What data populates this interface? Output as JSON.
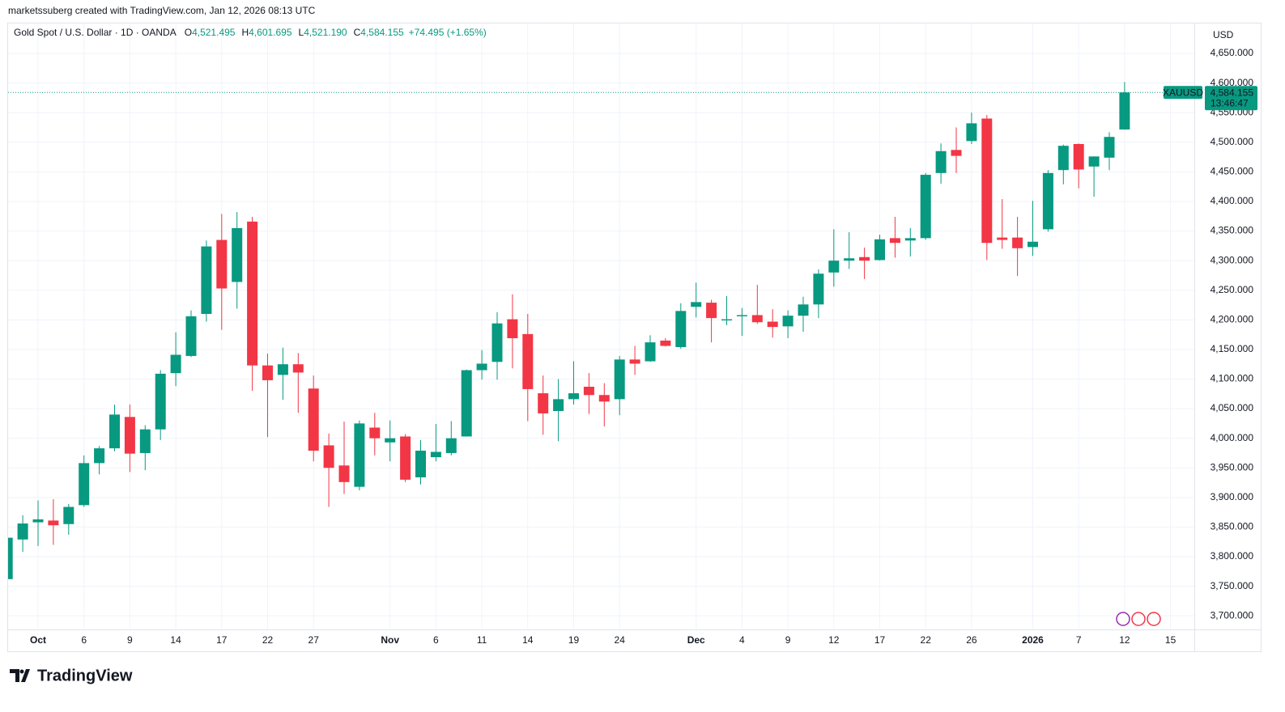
{
  "attribution": "marketssuberg created with TradingView.com, Jan 12, 2026 08:13 UTC",
  "brand": "TradingView",
  "chart_data": {
    "type": "candlestick",
    "title": "Gold Spot / U.S. Dollar · 1D · OANDA",
    "legend": [
      {
        "label": "O",
        "value": "4,521.495"
      },
      {
        "label": "H",
        "value": "4,601.695"
      },
      {
        "label": "L",
        "value": "4,521.190"
      },
      {
        "label": "C",
        "value": "4,584.155"
      }
    ],
    "change": "+74.495 (+1.65%)",
    "currency": "USD",
    "symbol": "XAUUSD",
    "last_price_label": "4,584.155",
    "countdown": "13:46:47",
    "up_color": "#089981",
    "down_color": "#f23645",
    "grid": true,
    "categories": [
      null,
      null,
      "Oct",
      null,
      null,
      "6",
      null,
      null,
      "9",
      null,
      null,
      "14",
      null,
      null,
      "17",
      null,
      null,
      "22",
      null,
      null,
      "27",
      null,
      null,
      null,
      null,
      "Nov",
      null,
      null,
      "6",
      null,
      null,
      "11",
      null,
      null,
      "14",
      null,
      null,
      "19",
      null,
      null,
      "24",
      null,
      null,
      null,
      null,
      "Dec",
      null,
      null,
      "4",
      null,
      null,
      "9",
      null,
      null,
      "12",
      null,
      null,
      "17",
      null,
      null,
      "22",
      null,
      null,
      "26",
      null,
      null,
      null,
      "2026",
      null,
      null,
      "7",
      null,
      null,
      "12",
      null,
      null,
      "15"
    ],
    "open": [
      3762,
      3829,
      3858,
      3861,
      3855,
      3887,
      3958,
      3983,
      4036,
      3975,
      4015,
      4110,
      4139,
      4210,
      4335,
      4264,
      4366,
      4123,
      4107,
      4125,
      4084,
      3988,
      3954,
      3918,
      4018,
      3993,
      4003,
      3934,
      3968,
      3975,
      4003,
      4115,
      4129,
      4201,
      4176,
      4076,
      4046,
      4066,
      4087,
      4073,
      4066,
      4133,
      4130,
      4165,
      4154,
      4222,
      4229,
      4199,
      4206,
      4208,
      4197,
      4189,
      4207,
      4226,
      4280,
      4300,
      4306,
      4301,
      4338,
      4334,
      4338,
      4448,
      4487,
      4502,
      4540,
      4339,
      4339,
      4323,
      4353,
      4453,
      4497,
      4459,
      4474,
      4521.495,
      null,
      null,
      null
    ],
    "high": [
      3833,
      3870,
      3895,
      3897,
      3889,
      3971,
      3987,
      4057,
      4057,
      4022,
      4115,
      4179,
      4216,
      4334,
      4379,
      4382,
      4374,
      4143,
      4153,
      4144,
      4106,
      4008,
      4028,
      4030,
      4043,
      4030,
      4007,
      3997,
      4024,
      4029,
      4116,
      4149,
      4213,
      4243,
      4210,
      4106,
      4100,
      4130,
      4110,
      4093,
      4139,
      4156,
      4174,
      4169,
      4228,
      4263,
      4234,
      4240,
      4220,
      4259,
      4218,
      4216,
      4239,
      4285,
      4353,
      4348,
      4322,
      4344,
      4374,
      4355,
      4448,
      4498,
      4525,
      4550,
      4546,
      4404,
      4374,
      4401,
      4453,
      4496,
      4498,
      4476,
      4517,
      4601.695,
      null,
      null,
      null
    ],
    "low": [
      3758,
      3808,
      3818,
      3820,
      3837,
      3884,
      3939,
      3978,
      3943,
      3946,
      3997,
      4088,
      4137,
      4197,
      4183,
      4219,
      4080,
      4002,
      4065,
      4043,
      3961,
      3884,
      3906,
      3912,
      3971,
      3961,
      3926,
      3922,
      3961,
      3971,
      4003,
      4099,
      4099,
      4118,
      4029,
      4006,
      3995,
      4057,
      4041,
      4020,
      4039,
      4107,
      4129,
      4155,
      4151,
      4204,
      4162,
      4191,
      4173,
      4193,
      4170,
      4169,
      4180,
      4203,
      4256,
      4286,
      4269,
      4300,
      4305,
      4307,
      4335,
      4430,
      4448,
      4497,
      4301,
      4320,
      4274,
      4308,
      4349,
      4429,
      4422,
      4408,
      4453,
      4521.19,
      null,
      null,
      null
    ],
    "close": [
      3832,
      3856,
      3863,
      3853,
      3884,
      3958,
      3983,
      4040,
      3974,
      4015,
      4109,
      4141,
      4206,
      4324,
      4253,
      4355,
      4123,
      4098,
      4125,
      4111,
      3979,
      3950,
      3926,
      4025,
      4000,
      4000,
      3930,
      3979,
      3977,
      4000,
      4115,
      4126,
      4194,
      4169,
      4083,
      4042,
      4066,
      4076,
      4073,
      4062,
      4133,
      4126,
      4162,
      4156,
      4215,
      4230,
      4203,
      4201,
      4208,
      4196,
      4188,
      4207,
      4226,
      4278,
      4300,
      4304,
      4300,
      4336,
      4330,
      4338,
      4445,
      4485,
      4477,
      4532,
      4330,
      4335,
      4321,
      4332,
      4448,
      4494,
      4454,
      4476,
      4509,
      4584.155,
      null,
      null,
      null
    ],
    "ylim": [
      3677,
      4702
    ],
    "yticks": [
      {
        "value": 3700,
        "label": "3,700.000"
      },
      {
        "value": 3750,
        "label": "3,750.000"
      },
      {
        "value": 3800,
        "label": "3,800.000"
      },
      {
        "value": 3850,
        "label": "3,850.000"
      },
      {
        "value": 3900,
        "label": "3,900.000"
      },
      {
        "value": 3950,
        "label": "3,950.000"
      },
      {
        "value": 4000,
        "label": "4,000.000"
      },
      {
        "value": 4050,
        "label": "4,050.000"
      },
      {
        "value": 4100,
        "label": "4,100.000"
      },
      {
        "value": 4150,
        "label": "4,150.000"
      },
      {
        "value": 4200,
        "label": "4,200.000"
      },
      {
        "value": 4250,
        "label": "4,250.000"
      },
      {
        "value": 4300,
        "label": "4,300.000"
      },
      {
        "value": 4350,
        "label": "4,350.000"
      },
      {
        "value": 4400,
        "label": "4,400.000"
      },
      {
        "value": 4450,
        "label": "4,450.000"
      },
      {
        "value": 4500,
        "label": "4,500.000"
      },
      {
        "value": 4550,
        "label": "4,550.000"
      },
      {
        "value": 4600,
        "label": "4,600.000"
      },
      {
        "value": 4650,
        "label": "4,650.000"
      }
    ]
  }
}
